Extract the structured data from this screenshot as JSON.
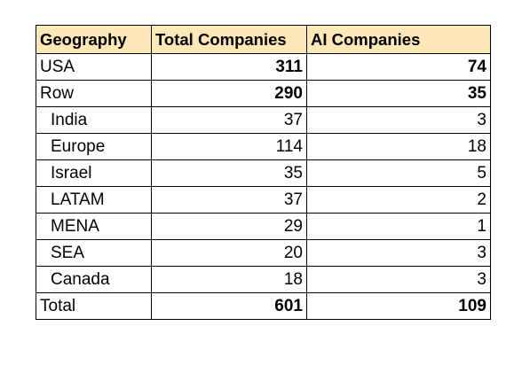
{
  "table": {
    "headers": [
      "Geography",
      "Total Companies",
      "AI Companies"
    ],
    "rows": [
      {
        "geography": "USA",
        "total_companies": "311",
        "ai_companies": "74",
        "level": 0,
        "bold_values": true
      },
      {
        "geography": "Row",
        "total_companies": "290",
        "ai_companies": "35",
        "level": 0,
        "bold_values": true
      },
      {
        "geography": "India",
        "total_companies": "37",
        "ai_companies": "3",
        "level": 1,
        "bold_values": false
      },
      {
        "geography": "Europe",
        "total_companies": "114",
        "ai_companies": "18",
        "level": 1,
        "bold_values": false
      },
      {
        "geography": "Israel",
        "total_companies": "35",
        "ai_companies": "5",
        "level": 1,
        "bold_values": false
      },
      {
        "geography": "LATAM",
        "total_companies": "37",
        "ai_companies": "2",
        "level": 1,
        "bold_values": false
      },
      {
        "geography": "MENA",
        "total_companies": "29",
        "ai_companies": "1",
        "level": 1,
        "bold_values": false
      },
      {
        "geography": "SEA",
        "total_companies": "20",
        "ai_companies": "3",
        "level": 1,
        "bold_values": false
      },
      {
        "geography": "Canada",
        "total_companies": "18",
        "ai_companies": "3",
        "level": 1,
        "bold_values": false
      },
      {
        "geography": "Total",
        "total_companies": "601",
        "ai_companies": "109",
        "level": 0,
        "bold_values": true
      }
    ]
  },
  "colors": {
    "header_background": "#fde9b8",
    "border": "#000000"
  }
}
